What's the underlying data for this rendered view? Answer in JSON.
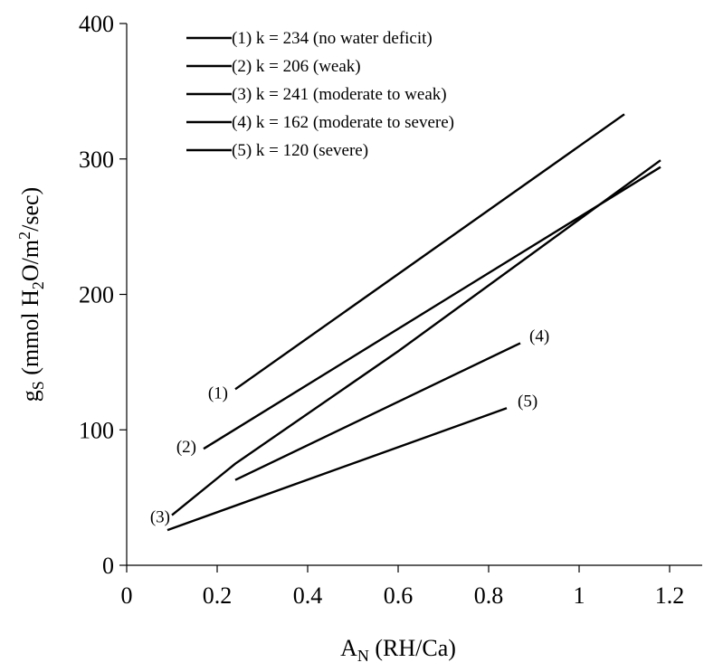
{
  "chart_data": {
    "type": "line",
    "xlabel": "A",
    "xlabel_sub": "N",
    "xlabel_rest": " (RH/Ca)",
    "ylabel_main": "g",
    "ylabel_sub": "S",
    "ylabel_units_a": " (mmol H",
    "ylabel_units_sub": "2",
    "ylabel_units_b": "O/m",
    "ylabel_units_sup": "2",
    "ylabel_units_c": "/sec)",
    "xlim": [
      0,
      1.2
    ],
    "ylim": [
      0,
      400
    ],
    "xticks": [
      "0",
      "0.2",
      "0.4",
      "0.6",
      "0.8",
      "1",
      "1.2"
    ],
    "yticks": [
      "0",
      "100",
      "200",
      "300",
      "400"
    ],
    "grid": false,
    "legend_position": "top-left",
    "series": [
      {
        "name": "(1) k = 234 (no water deficit)",
        "label": "(1)",
        "x": [
          0.24,
          1.1
        ],
        "y": [
          130,
          333
        ]
      },
      {
        "name": "(2) k = 206 (weak)",
        "label": "(2)",
        "x": [
          0.17,
          1.18
        ],
        "y": [
          86,
          294
        ]
      },
      {
        "name": "(3) k = 241 (moderate to weak)",
        "label": "(3)",
        "x": [
          0.1,
          0.24,
          0.6,
          1.18
        ],
        "y": [
          37,
          75,
          158,
          299
        ]
      },
      {
        "name": "(4) k = 162 (moderate to severe)",
        "label": "(4)",
        "x": [
          0.24,
          0.87
        ],
        "y": [
          63,
          164
        ]
      },
      {
        "name": "(5) k = 120 (severe)",
        "label": "(5)",
        "x": [
          0.09,
          0.84
        ],
        "y": [
          26,
          116
        ]
      }
    ]
  }
}
